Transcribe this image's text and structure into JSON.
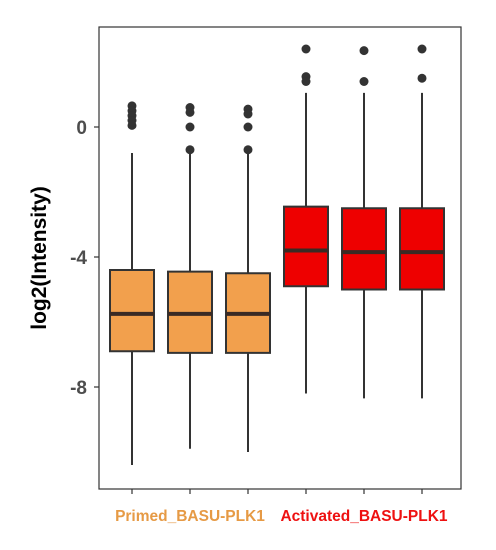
{
  "chart_data": {
    "type": "boxplot",
    "title": "",
    "xlabel": "",
    "ylabel": "log2(Intensity)",
    "ylim": [
      -11.2,
      2.6
    ],
    "yticks": [
      0,
      -4,
      -8
    ],
    "ytick_labels": [
      "0",
      "-4",
      "-8"
    ],
    "grid": false,
    "legend": "none",
    "groups": [
      {
        "label": "Primed_BASU-PLK1",
        "color": "#E69A45",
        "fill": "#F2A04D",
        "replicates": [
          0,
          1,
          2
        ]
      },
      {
        "label": "Activated_BASU-PLK1",
        "color": "#EE1111",
        "fill": "#EE0000",
        "replicates": [
          3,
          4,
          5
        ]
      }
    ],
    "series": [
      {
        "group": "Primed_BASU-PLK1",
        "fill": "#F2A04D",
        "min": -10.4,
        "q1": -6.9,
        "median": -5.75,
        "q3": -4.4,
        "max": -0.8,
        "outliers": [
          0.65,
          0.5,
          0.35,
          0.2,
          0.05
        ]
      },
      {
        "group": "Primed_BASU-PLK1",
        "fill": "#F2A04D",
        "min": -9.9,
        "q1": -6.95,
        "median": -5.75,
        "q3": -4.45,
        "max": -0.8,
        "outliers": [
          0.6,
          0.45,
          0.0,
          -0.7
        ]
      },
      {
        "group": "Primed_BASU-PLK1",
        "fill": "#F2A04D",
        "min": -10.0,
        "q1": -6.95,
        "median": -5.75,
        "q3": -4.5,
        "max": -0.8,
        "outliers": [
          0.55,
          0.4,
          0.0,
          -0.7
        ]
      },
      {
        "group": "Activated_BASU-PLK1",
        "fill": "#EE0000",
        "min": -8.2,
        "q1": -4.9,
        "median": -3.8,
        "q3": -2.45,
        "max": 1.05,
        "outliers": [
          2.4,
          1.55,
          1.4
        ]
      },
      {
        "group": "Activated_BASU-PLK1",
        "fill": "#EE0000",
        "min": -8.35,
        "q1": -5.0,
        "median": -3.85,
        "q3": -2.5,
        "max": 1.05,
        "outliers": [
          2.35,
          1.4
        ]
      },
      {
        "group": "Activated_BASU-PLK1",
        "fill": "#EE0000",
        "min": -8.35,
        "q1": -5.0,
        "median": -3.85,
        "q3": -2.5,
        "max": 1.05,
        "outliers": [
          2.4,
          1.5
        ]
      }
    ]
  }
}
